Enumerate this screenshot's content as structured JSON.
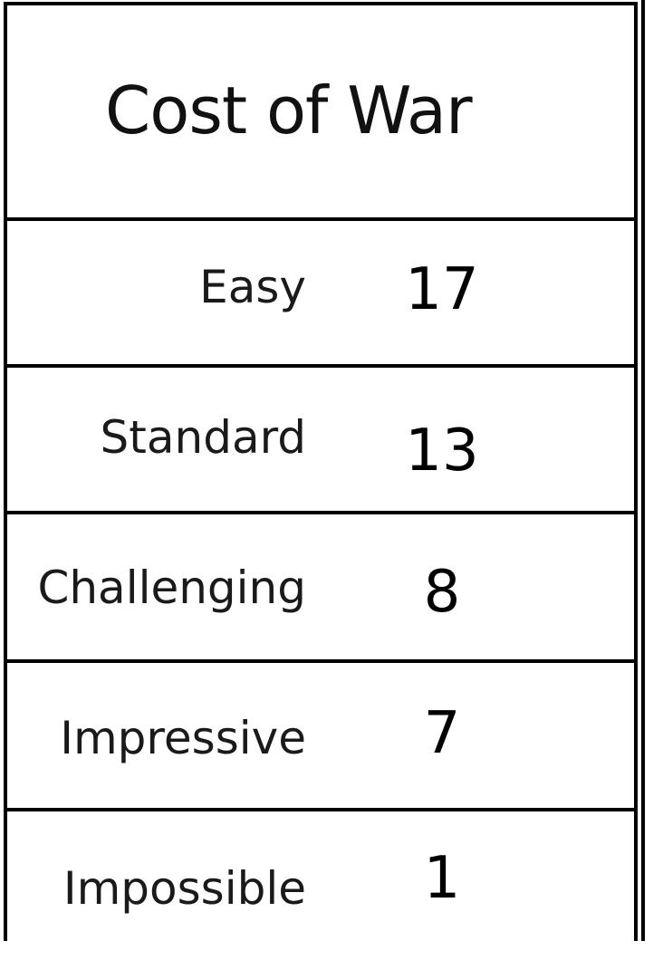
{
  "table": {
    "title": "Cost of War",
    "rows": [
      {
        "label": "Easy",
        "value": "17"
      },
      {
        "label": "Standard",
        "value": "13"
      },
      {
        "label": "Challenging",
        "value": "8"
      },
      {
        "label": "Impressive",
        "value": "7"
      },
      {
        "label": "Impossible",
        "value": "1"
      }
    ]
  }
}
